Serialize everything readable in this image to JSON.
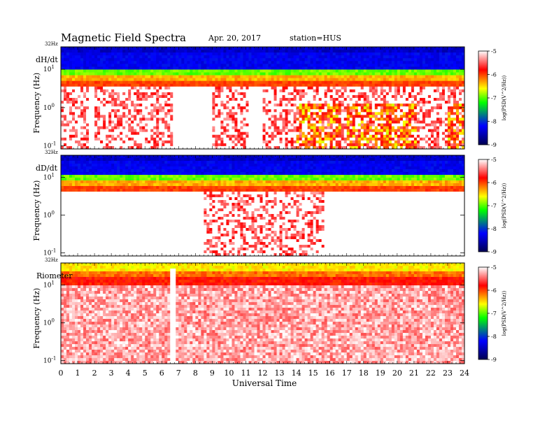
{
  "header": {
    "title": "Magnetic  Field  Spectra",
    "date": "Apr. 20, 2017",
    "station": "station=HUS"
  },
  "panels": [
    {
      "label": "dH/dt",
      "top_tick": "32Hz",
      "ylabel": "Frequency  (Hz)"
    },
    {
      "label": "dD/dt",
      "top_tick": "32Hz",
      "ylabel": "Frequency  (Hz)"
    },
    {
      "label": "Riometer",
      "top_tick": "32Hz",
      "ylabel": "Frequency  (Hz)"
    }
  ],
  "y_ticks": [
    {
      "base": "10",
      "exp": "1"
    },
    {
      "base": "10",
      "exp": "0"
    },
    {
      "base": "10",
      "exp": "-1"
    }
  ],
  "xlabel": "Universal  Time",
  "colorbar": {
    "label": "log(PSD(V^2/Hz))",
    "ticks": [
      "-5",
      "-6",
      "-7",
      "-8",
      "-9"
    ],
    "colors": [
      "#ffffff",
      "#ff0000",
      "#ffff00",
      "#00ff00",
      "#0000ff",
      "#000050"
    ]
  },
  "chart_data": {
    "type": "heatmap",
    "title": "Magnetic  Field  Spectra",
    "xlabel": "Universal  Time",
    "x_ticks": [
      "0",
      "1",
      "2",
      "3",
      "4",
      "5",
      "6",
      "7",
      "8",
      "9",
      "10",
      "11",
      "12",
      "13",
      "14",
      "15",
      "16",
      "17",
      "18",
      "19",
      "20",
      "21",
      "22",
      "23",
      "24"
    ],
    "xlim": [
      0,
      24
    ],
    "ylim_hz": [
      0.1,
      32
    ],
    "y_scale": "log",
    "color_scale": {
      "label": "log(PSD(V^2/Hz))",
      "range": [
        -9,
        -5
      ]
    },
    "series": [
      {
        "name": "dH/dt",
        "noise_floor_lower_hz": 8,
        "noise_floor_level": -6,
        "wideband_activity_hours": [
          [
            0,
            1.5
          ],
          [
            2,
            6.5
          ],
          [
            9,
            11
          ],
          [
            12,
            24
          ]
        ],
        "enhanced_low_freq_hours": [
          [
            14,
            16.5
          ],
          [
            17,
            21
          ],
          [
            23,
            24
          ]
        ]
      },
      {
        "name": "dD/dt",
        "noise_floor_lower_hz": 6,
        "noise_floor_level": -6,
        "wideband_activity_hours": [
          [
            8.5,
            15.5
          ]
        ],
        "enhanced_low_freq_hours": []
      },
      {
        "name": "Riometer",
        "noise_floor_lower_hz": 12,
        "noise_floor_level": -5.5,
        "wideband_activity_hours": [
          [
            0,
            24
          ]
        ],
        "enhanced_low_freq_hours": [],
        "spike_hour": 6.6
      }
    ]
  }
}
